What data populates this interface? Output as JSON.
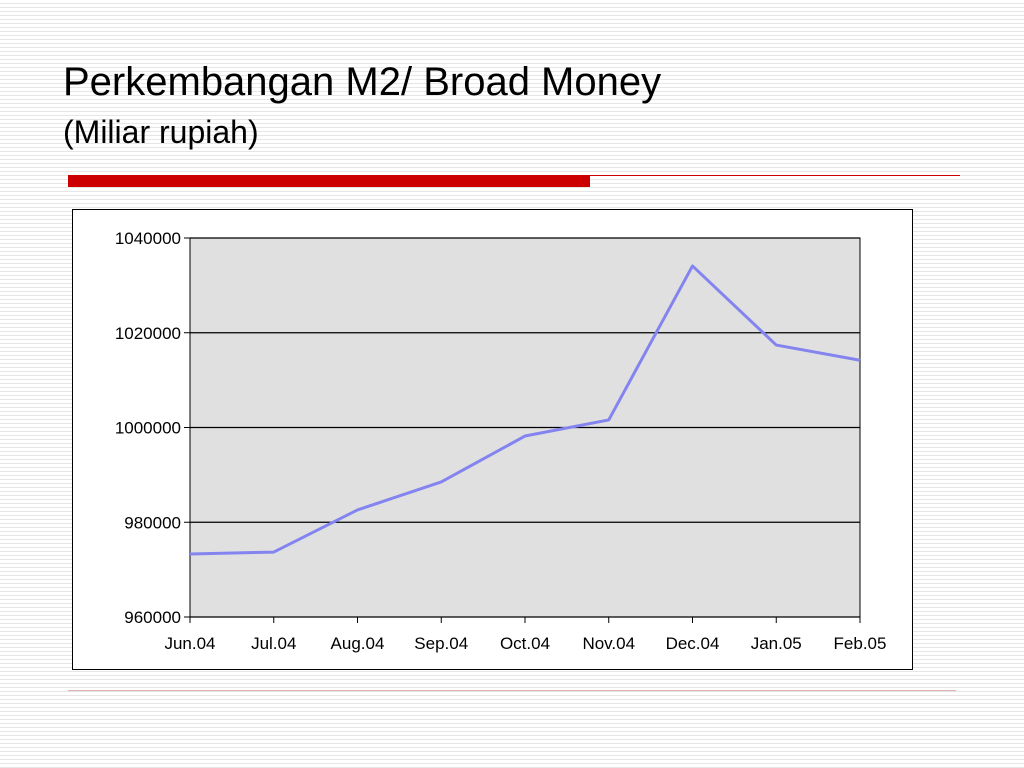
{
  "chart_data": {
    "type": "line",
    "title": "Perkembangan M2/ Broad Money",
    "subtitle": "(Miliar rupiah)",
    "categories": [
      "Jun.04",
      "Jul.04",
      "Aug.04",
      "Sep.04",
      "Oct.04",
      "Nov.04",
      "Dec.04",
      "Jan.05",
      "Feb.05"
    ],
    "series": [
      {
        "name": "M2",
        "color": "#8484f0",
        "values": [
          973300,
          973700,
          982600,
          988500,
          998200,
          1001600,
          1034100,
          1017400,
          1014200
        ]
      }
    ],
    "ylim": [
      960000,
      1040000
    ],
    "yticks": [
      960000,
      980000,
      1000000,
      1020000,
      1040000
    ],
    "grid": true,
    "legend": false
  }
}
